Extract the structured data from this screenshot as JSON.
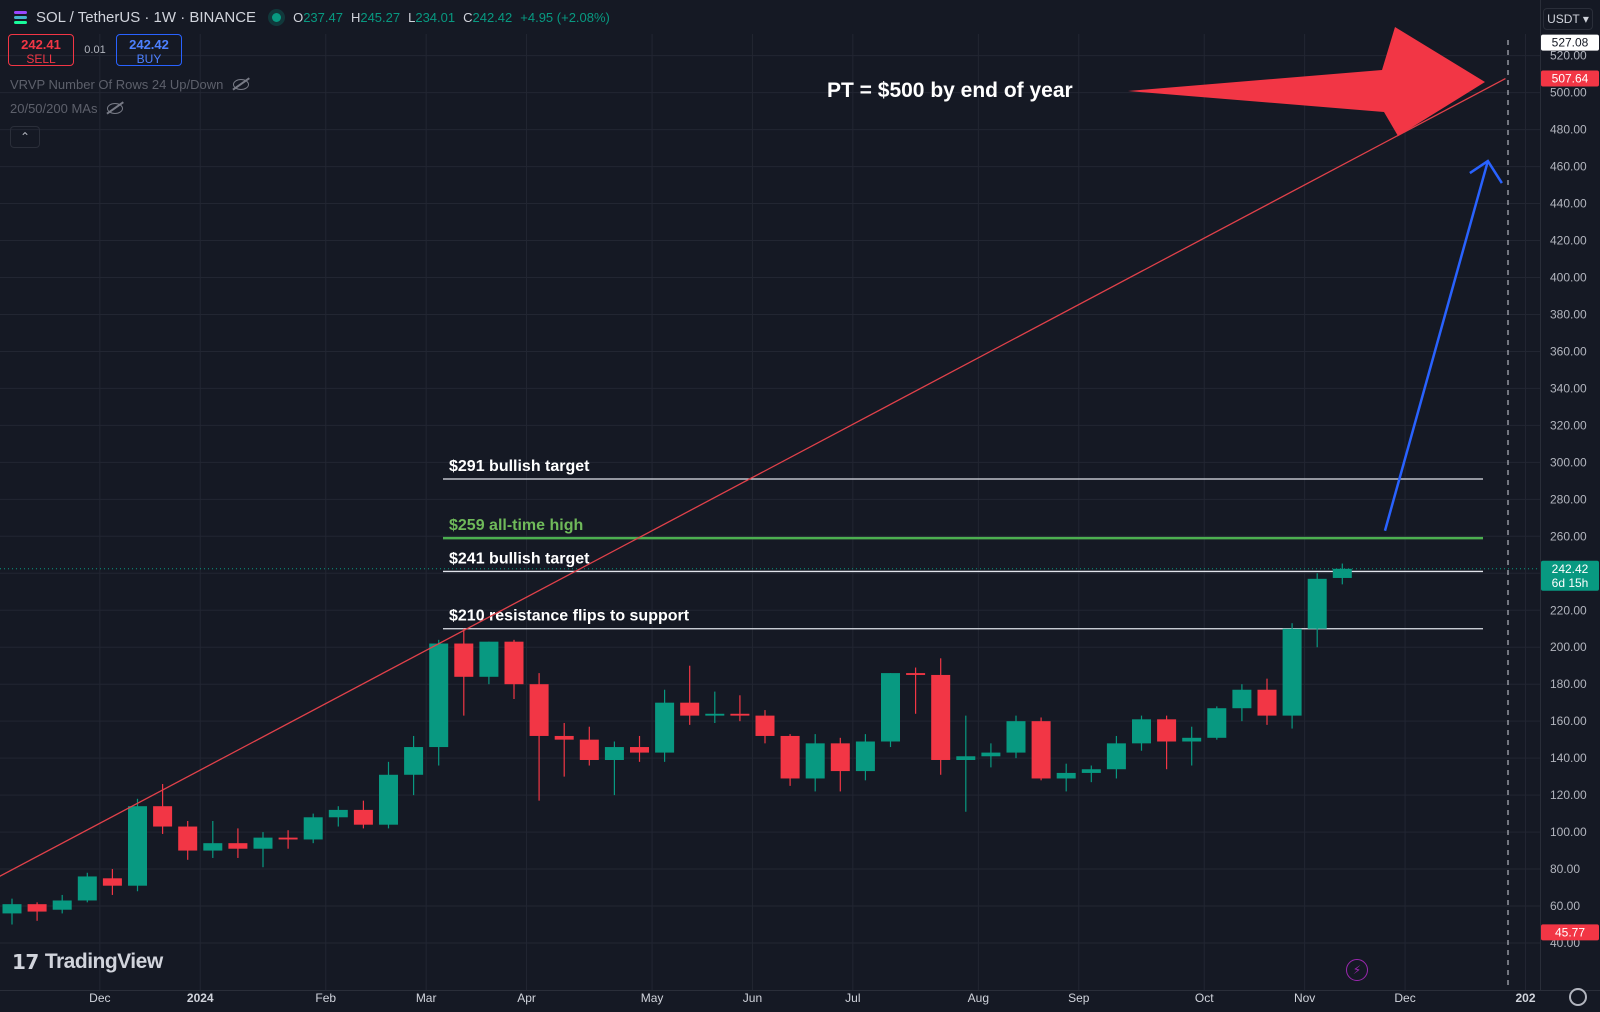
{
  "header": {
    "symbol": "SOL / TetherUS · 1W · BINANCE",
    "ohlc": [
      {
        "k": "O",
        "v": "237.47"
      },
      {
        "k": "H",
        "v": "245.27"
      },
      {
        "k": "L",
        "v": "234.01"
      },
      {
        "k": "C",
        "v": "242.42"
      },
      {
        "k": "",
        "v": "+4.95 (+2.08%)"
      }
    ]
  },
  "trade": {
    "sell_price": "242.41",
    "sell_label": "SELL",
    "spread": "0.01",
    "buy_price": "242.42",
    "buy_label": "BUY"
  },
  "indicators": [
    "VRVP Number Of Rows 24 Up/Down",
    "20/50/200 MAs"
  ],
  "collapse_glyph": "⌃",
  "brand": {
    "mark": "17",
    "name": "TradingView"
  },
  "currency_selector": "USDT ▾",
  "colors": {
    "background": "#151924",
    "grid": "#222632",
    "up": "#089981",
    "down": "#f23645",
    "trendline": "#e0414a",
    "ath": "#4caf50",
    "level": "#e0e3eb",
    "arrow_red": "#f23645",
    "arrow_blue": "#2962ff"
  },
  "icons": [
    "tradingview-logo-icon",
    "visibility-off-icon",
    "chevron-up-icon",
    "lightning-icon",
    "settings-gear-icon"
  ],
  "chart_data": {
    "type": "candlestick",
    "interval": "1W",
    "y_axis": {
      "min": 40,
      "max": 527.08,
      "tick_step": 20,
      "ticks": [
        "40.00",
        "60.00",
        "80.00",
        "100.00",
        "120.00",
        "140.00",
        "160.00",
        "180.00",
        "200.00",
        "220.00",
        "240.00",
        "260.00",
        "280.00",
        "300.00",
        "320.00",
        "340.00",
        "360.00",
        "380.00",
        "400.00",
        "420.00",
        "440.00",
        "460.00",
        "480.00",
        "500.00",
        "520.00"
      ]
    },
    "x_axis": {
      "labels": [
        {
          "text": "Dec",
          "week": 3.5,
          "bold": false
        },
        {
          "text": "2024",
          "week": 7.5,
          "bold": true
        },
        {
          "text": "Feb",
          "week": 12.5,
          "bold": false
        },
        {
          "text": "Mar",
          "week": 16.5,
          "bold": false
        },
        {
          "text": "Apr",
          "week": 20.5,
          "bold": false
        },
        {
          "text": "May",
          "week": 25.5,
          "bold": false
        },
        {
          "text": "Jun",
          "week": 29.5,
          "bold": false
        },
        {
          "text": "Jul",
          "week": 33.5,
          "bold": false
        },
        {
          "text": "Aug",
          "week": 38.5,
          "bold": false
        },
        {
          "text": "Sep",
          "week": 42.5,
          "bold": false
        },
        {
          "text": "Oct",
          "week": 47.5,
          "bold": false
        },
        {
          "text": "Nov",
          "week": 51.5,
          "bold": false
        },
        {
          "text": "Dec",
          "week": 55.5,
          "bold": false
        },
        {
          "text": "202",
          "week": 60.3,
          "bold": true
        }
      ]
    },
    "candles": [
      {
        "o": 56,
        "h": 64,
        "l": 50,
        "c": 61
      },
      {
        "o": 61,
        "h": 62,
        "l": 52,
        "c": 57
      },
      {
        "o": 58,
        "h": 66,
        "l": 56,
        "c": 63
      },
      {
        "o": 63,
        "h": 78,
        "l": 62,
        "c": 76
      },
      {
        "o": 75,
        "h": 80,
        "l": 66,
        "c": 71
      },
      {
        "o": 71,
        "h": 118,
        "l": 68,
        "c": 114
      },
      {
        "o": 114,
        "h": 126,
        "l": 99,
        "c": 103
      },
      {
        "o": 103,
        "h": 106,
        "l": 85,
        "c": 90
      },
      {
        "o": 90,
        "h": 106,
        "l": 86,
        "c": 94
      },
      {
        "o": 94,
        "h": 102,
        "l": 86,
        "c": 91
      },
      {
        "o": 91,
        "h": 100,
        "l": 81,
        "c": 97
      },
      {
        "o": 97,
        "h": 101,
        "l": 91,
        "c": 96
      },
      {
        "o": 96,
        "h": 110,
        "l": 94,
        "c": 108
      },
      {
        "o": 108,
        "h": 114,
        "l": 103,
        "c": 112
      },
      {
        "o": 112,
        "h": 117,
        "l": 102,
        "c": 104
      },
      {
        "o": 104,
        "h": 138,
        "l": 102,
        "c": 131
      },
      {
        "o": 131,
        "h": 152,
        "l": 120,
        "c": 146
      },
      {
        "o": 146,
        "h": 204,
        "l": 136,
        "c": 202
      },
      {
        "o": 202,
        "h": 210,
        "l": 163,
        "c": 184
      },
      {
        "o": 184,
        "h": 203,
        "l": 180,
        "c": 203
      },
      {
        "o": 203,
        "h": 204,
        "l": 172,
        "c": 180
      },
      {
        "o": 180,
        "h": 186,
        "l": 117,
        "c": 152
      },
      {
        "o": 152,
        "h": 159,
        "l": 130,
        "c": 150
      },
      {
        "o": 150,
        "h": 157,
        "l": 136,
        "c": 139
      },
      {
        "o": 139,
        "h": 149,
        "l": 120,
        "c": 146
      },
      {
        "o": 146,
        "h": 152,
        "l": 138,
        "c": 143
      },
      {
        "o": 143,
        "h": 177,
        "l": 138,
        "c": 170
      },
      {
        "o": 170,
        "h": 190,
        "l": 158,
        "c": 163
      },
      {
        "o": 163,
        "h": 176,
        "l": 159,
        "c": 164
      },
      {
        "o": 164,
        "h": 174,
        "l": 160,
        "c": 163
      },
      {
        "o": 163,
        "h": 166,
        "l": 148,
        "c": 152
      },
      {
        "o": 152,
        "h": 153,
        "l": 125,
        "c": 129
      },
      {
        "o": 129,
        "h": 153,
        "l": 122,
        "c": 148
      },
      {
        "o": 148,
        "h": 151,
        "l": 122,
        "c": 133
      },
      {
        "o": 133,
        "h": 153,
        "l": 128,
        "c": 149
      },
      {
        "o": 149,
        "h": 186,
        "l": 146,
        "c": 186
      },
      {
        "o": 186,
        "h": 189,
        "l": 164,
        "c": 185
      },
      {
        "o": 185,
        "h": 194,
        "l": 131,
        "c": 139
      },
      {
        "o": 139,
        "h": 163,
        "l": 111,
        "c": 141
      },
      {
        "o": 141,
        "h": 148,
        "l": 135,
        "c": 143
      },
      {
        "o": 143,
        "h": 163,
        "l": 140,
        "c": 160
      },
      {
        "o": 160,
        "h": 162,
        "l": 128,
        "c": 129
      },
      {
        "o": 129,
        "h": 137,
        "l": 122,
        "c": 132
      },
      {
        "o": 132,
        "h": 136,
        "l": 127,
        "c": 134
      },
      {
        "o": 134,
        "h": 152,
        "l": 129,
        "c": 148
      },
      {
        "o": 148,
        "h": 163,
        "l": 144,
        "c": 161
      },
      {
        "o": 161,
        "h": 163,
        "l": 134,
        "c": 149
      },
      {
        "o": 149,
        "h": 157,
        "l": 136,
        "c": 151
      },
      {
        "o": 151,
        "h": 168,
        "l": 150,
        "c": 167
      },
      {
        "o": 167,
        "h": 180,
        "l": 160,
        "c": 177
      },
      {
        "o": 177,
        "h": 183,
        "l": 158,
        "c": 163
      },
      {
        "o": 163,
        "h": 213,
        "l": 156,
        "c": 210
      },
      {
        "o": 210,
        "h": 240,
        "l": 200,
        "c": 237
      },
      {
        "o": 237.47,
        "h": 245.27,
        "l": 234.01,
        "c": 242.42
      }
    ],
    "levels": [
      {
        "value": 291,
        "label": "$291 bullish target",
        "color": "#e0e3eb",
        "width": 1.3
      },
      {
        "value": 259,
        "label": "$259 all-time high",
        "color": "#4caf50",
        "width": 2.5
      },
      {
        "value": 241,
        "label": "$241 bullish target",
        "color": "#e0e3eb",
        "width": 1.3
      },
      {
        "value": 210,
        "label": "$210 resistance flips to support",
        "color": "#e0e3eb",
        "width": 1.3
      }
    ],
    "trendline": {
      "from": {
        "week": -0.5,
        "value": 76
      },
      "to": {
        "week": 59.5,
        "value": 507.64
      }
    },
    "annotation": {
      "text": "PT = $500 by end of year"
    },
    "projection_arrow": {
      "from": {
        "week": 54.7,
        "value": 263
      },
      "to": {
        "week": 58.8,
        "value": 463
      }
    },
    "price_tags": [
      {
        "value": 527.08,
        "label": "527.08",
        "style": "light"
      },
      {
        "value": 507.64,
        "label": "507.64",
        "style": "red"
      },
      {
        "value": 242.42,
        "label": "242.42",
        "sub": "6d 15h",
        "style": "green"
      },
      {
        "value": 45.77,
        "label": "45.77",
        "style": "red"
      }
    ],
    "current_price": 242.42
  }
}
